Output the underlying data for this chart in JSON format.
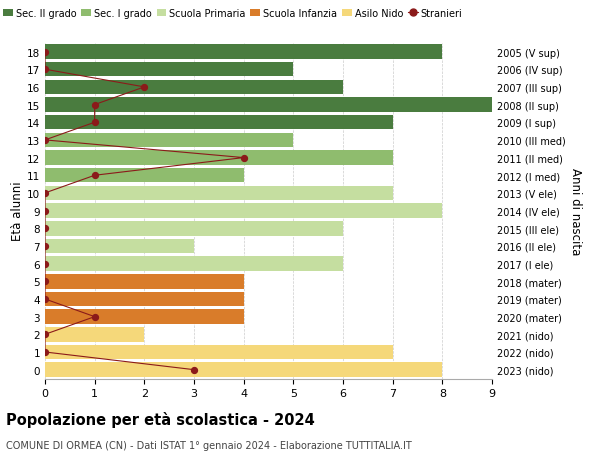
{
  "ages": [
    18,
    17,
    16,
    15,
    14,
    13,
    12,
    11,
    10,
    9,
    8,
    7,
    6,
    5,
    4,
    3,
    2,
    1,
    0
  ],
  "years": [
    "2005 (V sup)",
    "2006 (IV sup)",
    "2007 (III sup)",
    "2008 (II sup)",
    "2009 (I sup)",
    "2010 (III med)",
    "2011 (II med)",
    "2012 (I med)",
    "2013 (V ele)",
    "2014 (IV ele)",
    "2015 (III ele)",
    "2016 (II ele)",
    "2017 (I ele)",
    "2018 (mater)",
    "2019 (mater)",
    "2020 (mater)",
    "2021 (nido)",
    "2022 (nido)",
    "2023 (nido)"
  ],
  "bar_values": [
    8,
    5,
    6,
    9,
    7,
    5,
    7,
    4,
    7,
    8,
    6,
    3,
    6,
    4,
    4,
    4,
    2,
    7,
    8
  ],
  "bar_colors": [
    "#4a7c3f",
    "#4a7c3f",
    "#4a7c3f",
    "#4a7c3f",
    "#4a7c3f",
    "#8fbc6e",
    "#8fbc6e",
    "#8fbc6e",
    "#c5dea0",
    "#c5dea0",
    "#c5dea0",
    "#c5dea0",
    "#c5dea0",
    "#d97c2a",
    "#d97c2a",
    "#d97c2a",
    "#f5d87a",
    "#f5d87a",
    "#f5d87a"
  ],
  "stranieri_values": [
    0,
    0,
    2,
    1,
    1,
    0,
    4,
    1,
    0,
    0,
    0,
    0,
    0,
    0,
    0,
    1,
    0,
    0,
    3
  ],
  "stranieri_color": "#8b1a1a",
  "legend_labels": [
    "Sec. II grado",
    "Sec. I grado",
    "Scuola Primaria",
    "Scuola Infanzia",
    "Asilo Nido",
    "Stranieri"
  ],
  "legend_colors": [
    "#4a7c3f",
    "#8fbc6e",
    "#c5dea0",
    "#d97c2a",
    "#f5d87a",
    "#8b1a1a"
  ],
  "title": "Popolazione per età scolastica - 2024",
  "subtitle": "COMUNE DI ORMEA (CN) - Dati ISTAT 1° gennaio 2024 - Elaborazione TUTTITALIA.IT",
  "ylabel": "Età alunni",
  "ylabel_right": "Anni di nascita",
  "xlim": [
    0,
    9
  ],
  "background_color": "#ffffff",
  "grid_color": "#cccccc",
  "bar_height": 0.82
}
